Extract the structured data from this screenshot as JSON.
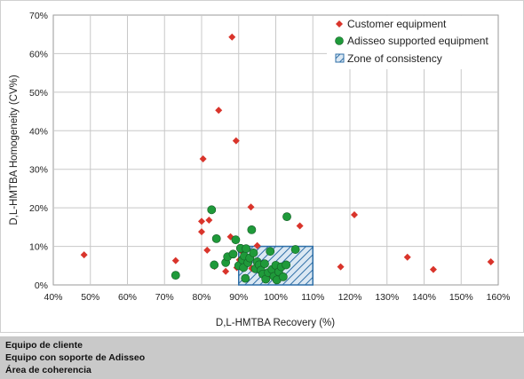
{
  "chart_data": {
    "type": "scatter",
    "title": "",
    "xlabel": "D,L-HMTBA Recovery (%)",
    "ylabel": "D,L-HMTBA Homogeneity (CV%)",
    "xlim": [
      40,
      160
    ],
    "ylim": [
      0,
      70
    ],
    "xticks": [
      40,
      50,
      60,
      70,
      80,
      90,
      100,
      110,
      120,
      130,
      140,
      150,
      160
    ],
    "yticks": [
      0,
      10,
      20,
      30,
      40,
      50,
      60,
      70
    ],
    "xtick_labels": [
      "40%",
      "50%",
      "60%",
      "70%",
      "80%",
      "90%",
      "100%",
      "110%",
      "120%",
      "130%",
      "140%",
      "150%",
      "160%"
    ],
    "ytick_labels": [
      "0%",
      "10%",
      "20%",
      "30%",
      "40%",
      "50%",
      "60%",
      "70%"
    ],
    "grid": true,
    "legend_position": "top-right",
    "colors": {
      "customer": "#d9342b",
      "adisseo": "#1f9a3a",
      "zone_fill": "#dbe8f3",
      "zone_stroke": "#2f6fa7",
      "grid": "#c8c8c8"
    },
    "series": [
      {
        "name": "Customer equipment",
        "marker": "diamond",
        "points": [
          [
            48.3,
            7.8
          ],
          [
            73.0,
            6.3
          ],
          [
            80.0,
            13.8
          ],
          [
            80.0,
            16.5
          ],
          [
            80.4,
            32.7
          ],
          [
            81.5,
            9.0
          ],
          [
            82.0,
            16.8
          ],
          [
            83.5,
            4.8
          ],
          [
            84.6,
            45.3
          ],
          [
            86.5,
            3.5
          ],
          [
            87.8,
            12.5
          ],
          [
            88.2,
            64.3
          ],
          [
            89.3,
            37.4
          ],
          [
            89.5,
            4.5
          ],
          [
            90.2,
            6.5
          ],
          [
            91.0,
            8.5
          ],
          [
            92.0,
            5.3
          ],
          [
            93.3,
            20.2
          ],
          [
            93.5,
            4.3
          ],
          [
            95.0,
            10.2
          ],
          [
            96.0,
            3.2
          ],
          [
            97.0,
            2.0
          ],
          [
            98.0,
            2.5
          ],
          [
            106.5,
            15.3
          ],
          [
            117.5,
            4.7
          ],
          [
            121.2,
            18.2
          ],
          [
            135.5,
            7.2
          ],
          [
            142.5,
            4.0
          ],
          [
            158.0,
            6.0
          ]
        ]
      },
      {
        "name": "Adisseo supported equipment",
        "marker": "circle",
        "points": [
          [
            73.0,
            2.5
          ],
          [
            82.7,
            19.5
          ],
          [
            83.4,
            5.2
          ],
          [
            84.0,
            12.0
          ],
          [
            86.5,
            5.8
          ],
          [
            87.0,
            7.3
          ],
          [
            88.5,
            8.0
          ],
          [
            89.2,
            11.7
          ],
          [
            90.0,
            5.0
          ],
          [
            90.5,
            9.5
          ],
          [
            91.0,
            6.5
          ],
          [
            91.3,
            4.5
          ],
          [
            91.5,
            7.5
          ],
          [
            91.8,
            1.7
          ],
          [
            92.0,
            9.4
          ],
          [
            92.5,
            5.8
          ],
          [
            93.0,
            7.0
          ],
          [
            93.5,
            14.3
          ],
          [
            94.0,
            8.3
          ],
          [
            94.5,
            4.2
          ],
          [
            95.0,
            6.0
          ],
          [
            95.5,
            5.2
          ],
          [
            96.0,
            3.8
          ],
          [
            96.5,
            2.8
          ],
          [
            97.0,
            5.5
          ],
          [
            97.3,
            1.5
          ],
          [
            98.0,
            3.2
          ],
          [
            98.5,
            8.7
          ],
          [
            99.0,
            4.0
          ],
          [
            99.5,
            2.2
          ],
          [
            100.0,
            5.1
          ],
          [
            100.3,
            1.3
          ],
          [
            100.8,
            3.4
          ],
          [
            101.5,
            4.7
          ],
          [
            102.0,
            2.1
          ],
          [
            102.8,
            5.2
          ],
          [
            103.0,
            17.7
          ],
          [
            105.3,
            9.2
          ]
        ]
      },
      {
        "name": "Zone of consistency",
        "type": "rect",
        "x": [
          90,
          110
        ],
        "y": [
          0,
          10
        ]
      }
    ]
  },
  "caption": {
    "lines": [
      "Equipo de cliente",
      "Equipo con soporte de Adisseo",
      "Área de coherencia"
    ]
  }
}
